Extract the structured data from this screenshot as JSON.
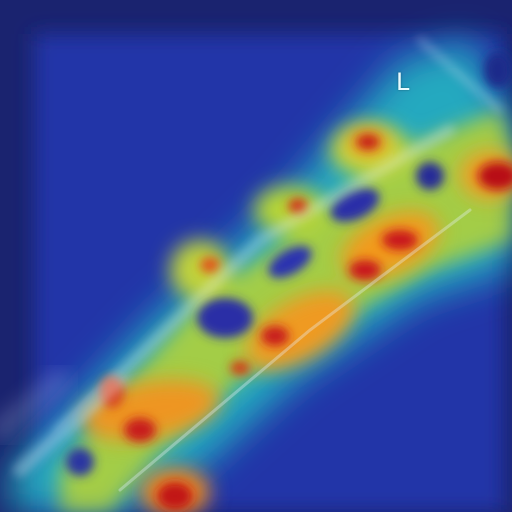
{
  "image": {
    "kind": "heatmap-overlay",
    "colormap": "jet",
    "colors": {
      "background": "#1d2d9a",
      "border": "#1a236f",
      "low": "#2740c8",
      "mid_low": "#22b7c7",
      "mid": "#bcd32f",
      "high": "#f3a220",
      "peak": "#c31313"
    }
  },
  "overlay": {
    "orientation_label": "L"
  }
}
